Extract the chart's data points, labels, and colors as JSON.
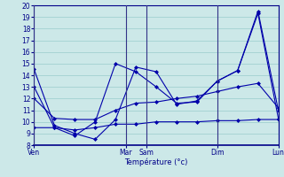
{
  "xlabel": "Température (°c)",
  "background_color": "#cce8e8",
  "grid_color": "#99cccc",
  "line_color": "#0000aa",
  "ylim": [
    8,
    20
  ],
  "xlim": [
    0,
    12
  ],
  "yticks": [
    8,
    9,
    10,
    11,
    12,
    13,
    14,
    15,
    16,
    17,
    18,
    19,
    20
  ],
  "x_tick_positions": [
    0,
    4.5,
    5.5,
    9.0,
    12
  ],
  "x_tick_labels": [
    "Ven",
    "Mar",
    "Sam",
    "Dim",
    "Lun"
  ],
  "x_vline_positions": [
    0,
    4.5,
    5.5,
    9.0,
    12
  ],
  "series": [
    {
      "x": [
        0,
        1,
        2,
        3,
        4,
        5,
        6,
        7,
        8,
        9,
        10,
        11,
        12
      ],
      "y": [
        14.5,
        9.7,
        9.0,
        8.5,
        10.2,
        14.7,
        14.3,
        11.5,
        11.8,
        13.5,
        14.4,
        19.5,
        11.0
      ]
    },
    {
      "x": [
        0,
        1,
        2,
        3,
        4,
        5,
        6,
        7,
        8,
        9,
        10,
        11,
        12
      ],
      "y": [
        13.0,
        9.5,
        8.8,
        10.0,
        15.0,
        14.3,
        13.0,
        11.6,
        11.7,
        13.5,
        14.4,
        19.3,
        10.3
      ]
    },
    {
      "x": [
        0,
        1,
        2,
        3,
        4,
        5,
        6,
        7,
        8,
        9,
        10,
        11,
        12
      ],
      "y": [
        12.0,
        10.3,
        10.2,
        10.2,
        11.0,
        11.6,
        11.7,
        12.0,
        12.2,
        12.6,
        13.0,
        13.3,
        11.2
      ]
    },
    {
      "x": [
        0,
        1,
        2,
        3,
        4,
        5,
        6,
        7,
        8,
        9,
        10,
        11,
        12
      ],
      "y": [
        9.5,
        9.5,
        9.3,
        9.5,
        9.8,
        9.8,
        10.0,
        10.0,
        10.0,
        10.1,
        10.1,
        10.2,
        10.2
      ]
    }
  ]
}
